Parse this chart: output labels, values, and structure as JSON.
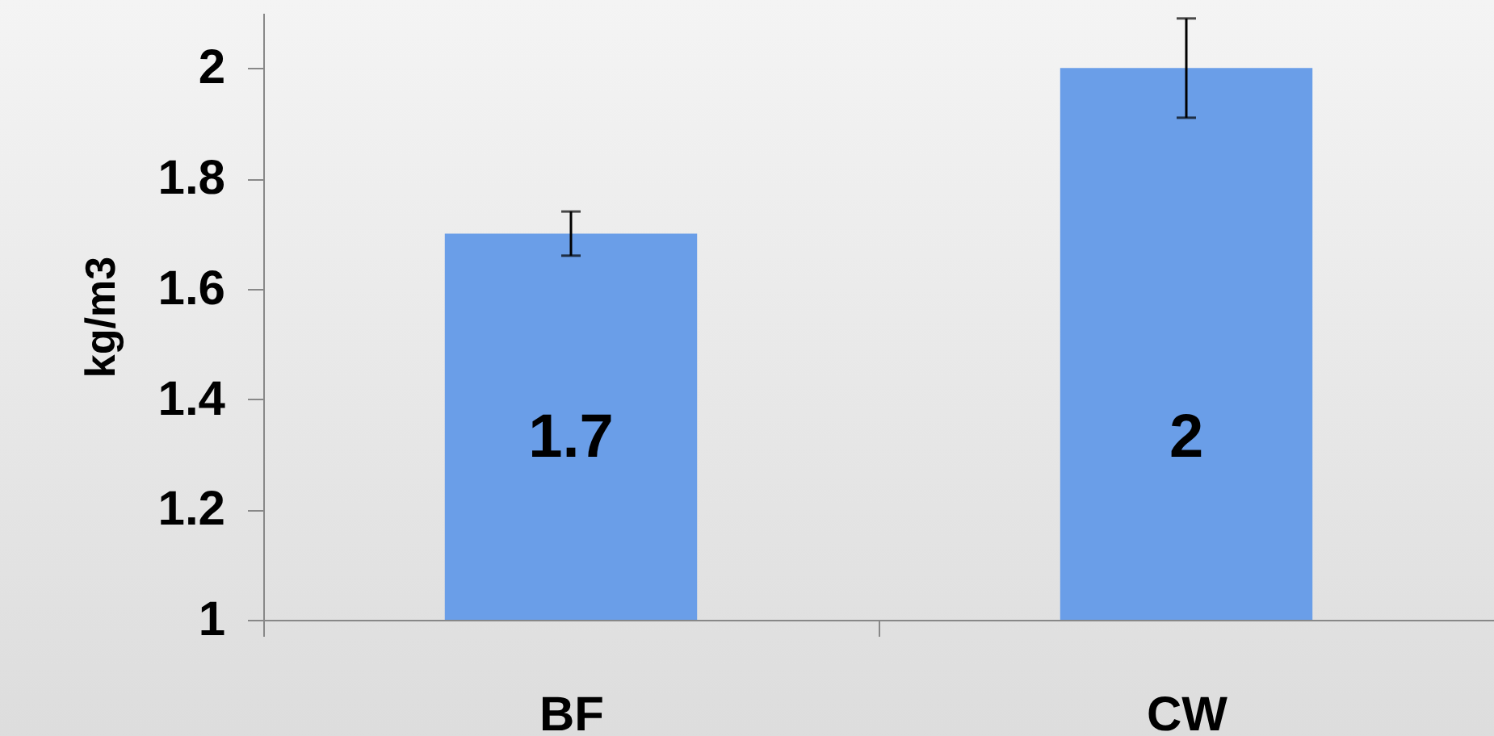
{
  "chart_data": {
    "type": "bar",
    "categories": [
      "BF",
      "CW"
    ],
    "values": [
      1.7,
      2
    ],
    "errors": [
      0.04,
      0.09
    ],
    "color": "#6a9ee8",
    "ylabel": "kg/m3",
    "ylim": [
      1,
      2.1
    ],
    "yticks": [
      1,
      1.2,
      1.4,
      1.6,
      1.8,
      2
    ],
    "data_labels": true
  }
}
